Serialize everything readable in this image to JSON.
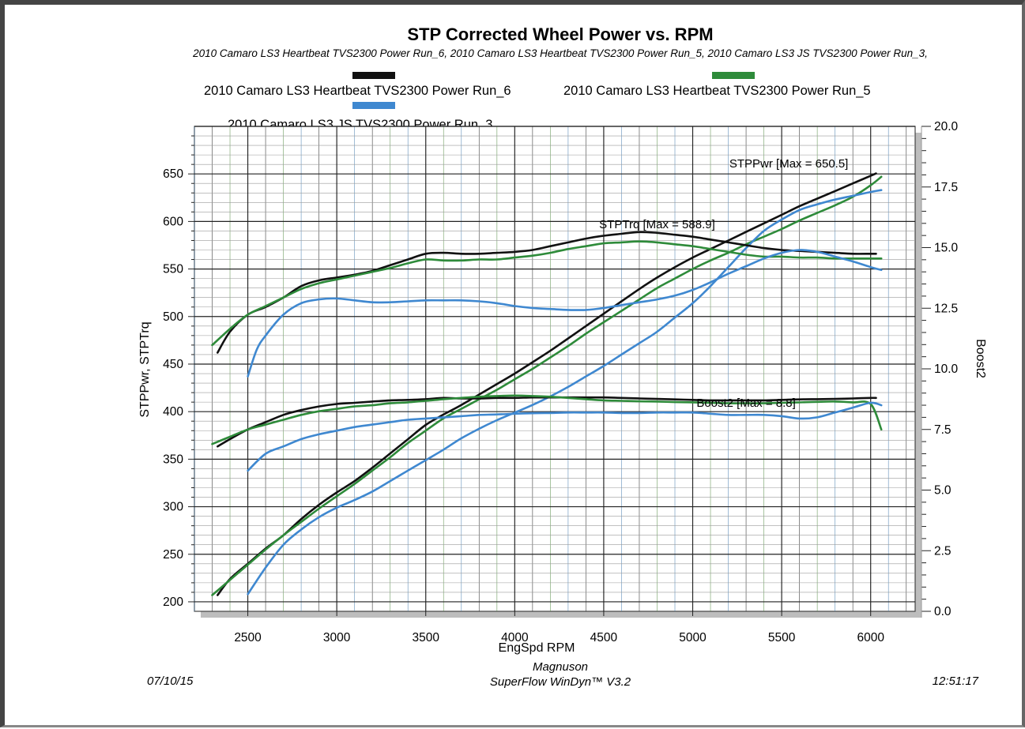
{
  "chart_data": {
    "type": "line",
    "title": "STP Corrected Wheel Power vs. RPM",
    "subtitle": "2010 Camaro LS3 Heartbeat TVS2300 Power Run_6, 2010 Camaro LS3 Heartbeat TVS2300 Power Run_5, 2010 Camaro LS3 JS TVS2300 Power Run_3,",
    "xlabel": "EngSpd RPM",
    "ylabel": "STPPwr, STPTrq",
    "y2label": "Boost2",
    "xlim": [
      2200,
      6250
    ],
    "ylim": [
      190,
      700
    ],
    "y2lim": [
      0,
      20
    ],
    "x_ticks": [
      2500,
      3000,
      3500,
      4000,
      4500,
      5000,
      5500,
      6000
    ],
    "x_tick_labels": [
      "2500",
      "3000",
      "3500",
      "4000",
      "4500",
      "5000",
      "5500",
      "6000"
    ],
    "y_ticks": [
      200,
      250,
      300,
      350,
      400,
      450,
      500,
      550,
      600,
      650
    ],
    "y_tick_labels": [
      "200",
      "250",
      "300",
      "350",
      "400",
      "450",
      "500",
      "550",
      "600",
      "650"
    ],
    "y2_ticks": [
      0,
      2.5,
      5,
      7.5,
      10,
      12.5,
      15,
      17.5,
      20
    ],
    "y2_tick_labels": [
      "0.0",
      "2.5",
      "5.0",
      "7.5",
      "10.0",
      "12.5",
      "15.0",
      "17.5",
      "20.0"
    ],
    "grid": true,
    "legend_position": "top",
    "legend": [
      {
        "name": "2010 Camaro LS3 Heartbeat TVS2300 Power Run_6",
        "color": "#111111"
      },
      {
        "name": "2010 Camaro LS3 Heartbeat TVS2300 Power Run_5",
        "color": "#2e8b3a"
      },
      {
        "name": "2010 Camaro LS3 JS TVS2300 Power Run_3",
        "color": "#3f88d0"
      }
    ],
    "annotations": [
      {
        "text": "STPPwr [Max = 650.5]",
        "x": 5540,
        "y": 657
      },
      {
        "text": "STPTrq [Max = 588.9]",
        "x": 4800,
        "y": 593
      },
      {
        "text": "Boost2 [Max = 8.8]",
        "x": 5300,
        "y": 405
      }
    ],
    "series": [
      {
        "run": "Run_6",
        "measure": "STPPwr",
        "axis": "left",
        "color": "#111111",
        "x": [
          2330,
          2400,
          2500,
          2600,
          2700,
          2800,
          2900,
          3000,
          3100,
          3200,
          3300,
          3400,
          3500,
          3600,
          3700,
          3800,
          3900,
          4000,
          4100,
          4200,
          4300,
          4400,
          4500,
          4600,
          4700,
          4800,
          4900,
          5000,
          5100,
          5200,
          5300,
          5400,
          5500,
          5600,
          5700,
          5800,
          5900,
          6000,
          6030
        ],
        "y": [
          207,
          224,
          240,
          256,
          270,
          287,
          302,
          315,
          327,
          341,
          356,
          371,
          386,
          397,
          407,
          418,
          429,
          440,
          452,
          464,
          477,
          490,
          503,
          516,
          529,
          541,
          552,
          562,
          571,
          580,
          589,
          598,
          607,
          616,
          624,
          632,
          640,
          648,
          650.5
        ]
      },
      {
        "run": "Run_5",
        "measure": "STPPwr",
        "axis": "left",
        "color": "#2e8b3a",
        "x": [
          2300,
          2400,
          2500,
          2600,
          2700,
          2800,
          2900,
          3000,
          3100,
          3200,
          3300,
          3400,
          3500,
          3600,
          3700,
          3800,
          3900,
          4000,
          4100,
          4200,
          4300,
          4400,
          4500,
          4600,
          4700,
          4800,
          4900,
          5000,
          5100,
          5200,
          5300,
          5400,
          5500,
          5600,
          5700,
          5800,
          5900,
          6000,
          6060
        ],
        "y": [
          207,
          223,
          239,
          255,
          270,
          284,
          298,
          311,
          324,
          338,
          352,
          367,
          380,
          393,
          403,
          413,
          423,
          434,
          445,
          457,
          469,
          482,
          494,
          506,
          518,
          530,
          540,
          550,
          559,
          567,
          576,
          584,
          592,
          601,
          609,
          617,
          626,
          638,
          647
        ]
      },
      {
        "run": "Run_3",
        "measure": "STPPwr",
        "axis": "left",
        "color": "#3f88d0",
        "x": [
          2500,
          2600,
          2700,
          2800,
          2900,
          3000,
          3100,
          3200,
          3300,
          3400,
          3500,
          3600,
          3700,
          3800,
          3900,
          4000,
          4100,
          4200,
          4300,
          4400,
          4500,
          4600,
          4700,
          4800,
          4900,
          5000,
          5100,
          5200,
          5300,
          5400,
          5500,
          5600,
          5700,
          5800,
          5900,
          6000,
          6060
        ],
        "y": [
          208,
          236,
          260,
          276,
          289,
          299,
          307,
          316,
          327,
          338,
          349,
          360,
          372,
          382,
          391,
          399,
          407,
          416,
          426,
          437,
          448,
          460,
          472,
          484,
          499,
          514,
          532,
          552,
          572,
          590,
          602,
          612,
          618,
          623,
          627,
          631,
          633
        ]
      },
      {
        "run": "Run_6",
        "measure": "STPTrq",
        "axis": "left",
        "color": "#111111",
        "x": [
          2330,
          2400,
          2500,
          2600,
          2700,
          2800,
          2900,
          3000,
          3100,
          3200,
          3300,
          3400,
          3500,
          3600,
          3700,
          3800,
          3900,
          4000,
          4100,
          4200,
          4300,
          4400,
          4500,
          4600,
          4700,
          4800,
          4900,
          5000,
          5100,
          5200,
          5300,
          5400,
          5500,
          5600,
          5700,
          5800,
          5900,
          6000,
          6030
        ],
        "y": [
          462,
          484,
          502,
          510,
          520,
          532,
          538,
          541,
          544,
          548,
          554,
          560,
          566,
          567,
          566,
          566,
          567,
          568,
          570,
          574,
          578,
          582,
          585,
          587,
          588.9,
          588,
          586,
          584,
          581,
          578,
          575,
          572,
          570,
          569,
          568,
          567,
          566,
          566,
          566
        ]
      },
      {
        "run": "Run_5",
        "measure": "STPTrq",
        "axis": "left",
        "color": "#2e8b3a",
        "x": [
          2300,
          2400,
          2500,
          2600,
          2700,
          2800,
          2900,
          3000,
          3100,
          3200,
          3300,
          3400,
          3500,
          3600,
          3700,
          3800,
          3900,
          4000,
          4100,
          4200,
          4300,
          4400,
          4500,
          4600,
          4700,
          4800,
          4900,
          5000,
          5100,
          5200,
          5300,
          5400,
          5500,
          5600,
          5700,
          5800,
          5900,
          6000,
          6060
        ],
        "y": [
          470,
          487,
          502,
          511,
          520,
          529,
          535,
          539,
          543,
          547,
          551,
          556,
          560,
          559,
          559,
          560,
          560,
          562,
          564,
          567,
          571,
          574,
          577,
          578,
          579,
          578,
          576,
          574,
          571,
          568,
          565,
          563,
          563,
          562,
          562,
          561,
          561,
          561,
          561
        ]
      },
      {
        "run": "Run_3",
        "measure": "STPTrq",
        "axis": "left",
        "color": "#3f88d0",
        "x": [
          2500,
          2550,
          2600,
          2700,
          2800,
          2900,
          3000,
          3100,
          3200,
          3300,
          3400,
          3500,
          3600,
          3700,
          3800,
          3900,
          4000,
          4100,
          4200,
          4300,
          4400,
          4500,
          4600,
          4700,
          4800,
          4900,
          5000,
          5100,
          5200,
          5300,
          5400,
          5500,
          5600,
          5700,
          5800,
          5900,
          6000,
          6060
        ],
        "y": [
          437,
          465,
          480,
          502,
          514,
          518,
          519,
          517,
          515,
          515,
          516,
          517,
          517,
          517,
          516,
          514,
          511,
          509,
          508,
          507,
          507,
          509,
          512,
          515,
          518,
          522,
          528,
          536,
          545,
          553,
          561,
          567,
          570,
          568,
          563,
          558,
          552,
          549
        ]
      },
      {
        "run": "Run_6",
        "measure": "Boost2",
        "axis": "right",
        "color": "#111111",
        "x": [
          2330,
          2400,
          2500,
          2600,
          2700,
          2800,
          2900,
          3000,
          3100,
          3200,
          3300,
          3400,
          3500,
          3600,
          3700,
          3800,
          3900,
          4000,
          4100,
          4200,
          4300,
          4400,
          4500,
          4600,
          4700,
          4800,
          4900,
          5000,
          5100,
          5200,
          5300,
          5400,
          5500,
          5600,
          5700,
          5800,
          5900,
          6000,
          6030
        ],
        "y": [
          6.8,
          7.1,
          7.5,
          7.8,
          8.1,
          8.3,
          8.45,
          8.55,
          8.6,
          8.65,
          8.7,
          8.72,
          8.75,
          8.8,
          8.78,
          8.78,
          8.8,
          8.8,
          8.82,
          8.82,
          8.82,
          8.82,
          8.82,
          8.8,
          8.78,
          8.76,
          8.74,
          8.72,
          8.7,
          8.7,
          8.7,
          8.7,
          8.72,
          8.74,
          8.75,
          8.76,
          8.78,
          8.8,
          8.8
        ]
      },
      {
        "run": "Run_5",
        "measure": "Boost2",
        "axis": "right",
        "color": "#2e8b3a",
        "x": [
          2300,
          2400,
          2500,
          2600,
          2700,
          2800,
          2900,
          3000,
          3100,
          3200,
          3300,
          3400,
          3500,
          3600,
          3700,
          3800,
          3900,
          4000,
          4100,
          4200,
          4300,
          4400,
          4500,
          4600,
          4700,
          4800,
          4900,
          5000,
          5100,
          5200,
          5300,
          5400,
          5500,
          5600,
          5700,
          5800,
          5900,
          6000,
          6060
        ],
        "y": [
          6.9,
          7.2,
          7.5,
          7.7,
          7.9,
          8.1,
          8.25,
          8.35,
          8.45,
          8.5,
          8.58,
          8.62,
          8.68,
          8.75,
          8.8,
          8.85,
          8.88,
          8.9,
          8.88,
          8.85,
          8.8,
          8.75,
          8.7,
          8.68,
          8.66,
          8.65,
          8.63,
          8.62,
          8.6,
          8.58,
          8.58,
          8.58,
          8.6,
          8.62,
          8.64,
          8.65,
          8.62,
          8.55,
          7.5
        ]
      },
      {
        "run": "Run_3",
        "measure": "Boost2",
        "axis": "right",
        "color": "#3f88d0",
        "x": [
          2500,
          2600,
          2700,
          2800,
          2900,
          3000,
          3100,
          3200,
          3300,
          3400,
          3500,
          3600,
          3700,
          3800,
          3900,
          4000,
          4100,
          4200,
          4300,
          4400,
          4500,
          4600,
          4700,
          4800,
          4900,
          5000,
          5100,
          5200,
          5300,
          5400,
          5500,
          5600,
          5700,
          5800,
          5900,
          6000,
          6060
        ],
        "y": [
          5.8,
          6.5,
          6.8,
          7.1,
          7.3,
          7.45,
          7.6,
          7.7,
          7.8,
          7.9,
          7.95,
          8.0,
          8.05,
          8.1,
          8.12,
          8.15,
          8.17,
          8.18,
          8.2,
          8.2,
          8.2,
          8.18,
          8.18,
          8.2,
          8.2,
          8.2,
          8.15,
          8.1,
          8.1,
          8.1,
          8.05,
          7.95,
          8.0,
          8.2,
          8.4,
          8.6,
          8.5
        ]
      }
    ]
  },
  "footer": {
    "date": "07/10/15",
    "time": "12:51:17",
    "center_line1": "Magnuson",
    "center_line2": "SuperFlow WinDyn™ V3.2"
  }
}
